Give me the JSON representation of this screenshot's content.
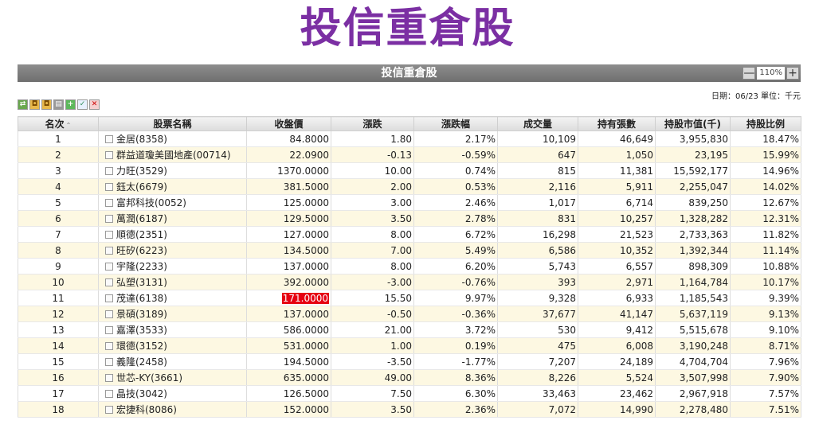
{
  "page_title": "投信重倉股",
  "panel_title": "投信重倉股",
  "zoom": {
    "minus": "—",
    "level": "110%",
    "plus": "+"
  },
  "date_line": "日期：06/23 單位：千元",
  "toolbar_icons": [
    "export-icon",
    "lock-icon",
    "lock-icon",
    "print-icon",
    "add-icon",
    "check-icon",
    "close-icon"
  ],
  "columns": [
    "名次",
    "股票名稱",
    "收盤價",
    "漲跌",
    "漲跌幅",
    "成交量",
    "持有張數",
    "持股市值(千)",
    "持股比例"
  ],
  "colors": {
    "title": "#7b2fa3",
    "up": "#e0142a",
    "down": "#1a9b1a",
    "highlight": "#e60012",
    "even_row": "#fdf8e2"
  },
  "rows": [
    {
      "rank": "1",
      "name": "金居(8358)",
      "close": "84.8000",
      "chg": "1.80",
      "pct": "2.17%",
      "vol": "10,109",
      "shares": "46,649",
      "value": "3,955,830",
      "ratio": "18.47%",
      "dir": "up"
    },
    {
      "rank": "2",
      "name": "群益道瓊美國地產(00714)",
      "close": "22.0900",
      "chg": "-0.13",
      "pct": "-0.59%",
      "vol": "647",
      "shares": "1,050",
      "value": "23,195",
      "ratio": "15.99%",
      "dir": "down"
    },
    {
      "rank": "3",
      "name": "力旺(3529)",
      "close": "1370.0000",
      "chg": "10.00",
      "pct": "0.74%",
      "vol": "815",
      "shares": "11,381",
      "value": "15,592,177",
      "ratio": "14.96%",
      "dir": "up"
    },
    {
      "rank": "4",
      "name": "鈺太(6679)",
      "close": "381.5000",
      "chg": "2.00",
      "pct": "0.53%",
      "vol": "2,116",
      "shares": "5,911",
      "value": "2,255,047",
      "ratio": "14.02%",
      "dir": "up"
    },
    {
      "rank": "5",
      "name": "富邦科技(0052)",
      "close": "125.0000",
      "chg": "3.00",
      "pct": "2.46%",
      "vol": "1,017",
      "shares": "6,714",
      "value": "839,250",
      "ratio": "12.67%",
      "dir": "up"
    },
    {
      "rank": "6",
      "name": "萬潤(6187)",
      "close": "129.5000",
      "chg": "3.50",
      "pct": "2.78%",
      "vol": "831",
      "shares": "10,257",
      "value": "1,328,282",
      "ratio": "12.31%",
      "dir": "up"
    },
    {
      "rank": "7",
      "name": "順德(2351)",
      "close": "127.0000",
      "chg": "8.00",
      "pct": "6.72%",
      "vol": "16,298",
      "shares": "21,523",
      "value": "2,733,363",
      "ratio": "11.82%",
      "dir": "up"
    },
    {
      "rank": "8",
      "name": "旺矽(6223)",
      "close": "134.5000",
      "chg": "7.00",
      "pct": "5.49%",
      "vol": "6,586",
      "shares": "10,352",
      "value": "1,392,344",
      "ratio": "11.14%",
      "dir": "up"
    },
    {
      "rank": "9",
      "name": "宇隆(2233)",
      "close": "137.0000",
      "chg": "8.00",
      "pct": "6.20%",
      "vol": "5,743",
      "shares": "6,557",
      "value": "898,309",
      "ratio": "10.88%",
      "dir": "up"
    },
    {
      "rank": "10",
      "name": "弘塑(3131)",
      "close": "392.0000",
      "chg": "-3.00",
      "pct": "-0.76%",
      "vol": "393",
      "shares": "2,971",
      "value": "1,164,784",
      "ratio": "10.17%",
      "dir": "down"
    },
    {
      "rank": "11",
      "name": "茂達(6138)",
      "close": "171.0000",
      "chg": "15.50",
      "pct": "9.97%",
      "vol": "9,328",
      "shares": "6,933",
      "value": "1,185,543",
      "ratio": "9.39%",
      "dir": "up",
      "limit": true
    },
    {
      "rank": "12",
      "name": "景碩(3189)",
      "close": "137.0000",
      "chg": "-0.50",
      "pct": "-0.36%",
      "vol": "37,677",
      "shares": "41,147",
      "value": "5,637,119",
      "ratio": "9.13%",
      "dir": "down"
    },
    {
      "rank": "13",
      "name": "嘉澤(3533)",
      "close": "586.0000",
      "chg": "21.00",
      "pct": "3.72%",
      "vol": "530",
      "shares": "9,412",
      "value": "5,515,678",
      "ratio": "9.10%",
      "dir": "up"
    },
    {
      "rank": "14",
      "name": "環德(3152)",
      "close": "531.0000",
      "chg": "1.00",
      "pct": "0.19%",
      "vol": "475",
      "shares": "6,008",
      "value": "3,190,248",
      "ratio": "8.71%",
      "dir": "up"
    },
    {
      "rank": "15",
      "name": "義隆(2458)",
      "close": "194.5000",
      "chg": "-3.50",
      "pct": "-1.77%",
      "vol": "7,207",
      "shares": "24,189",
      "value": "4,704,704",
      "ratio": "7.96%",
      "dir": "down"
    },
    {
      "rank": "16",
      "name": "世芯-KY(3661)",
      "close": "635.0000",
      "chg": "49.00",
      "pct": "8.36%",
      "vol": "8,226",
      "shares": "5,524",
      "value": "3,507,998",
      "ratio": "7.90%",
      "dir": "up"
    },
    {
      "rank": "17",
      "name": "晶技(3042)",
      "close": "126.5000",
      "chg": "7.50",
      "pct": "6.30%",
      "vol": "33,463",
      "shares": "23,462",
      "value": "2,967,918",
      "ratio": "7.57%",
      "dir": "up"
    },
    {
      "rank": "18",
      "name": "宏捷科(8086)",
      "close": "152.0000",
      "chg": "3.50",
      "pct": "2.36%",
      "vol": "7,072",
      "shares": "14,990",
      "value": "2,278,480",
      "ratio": "7.51%",
      "dir": "up"
    }
  ]
}
